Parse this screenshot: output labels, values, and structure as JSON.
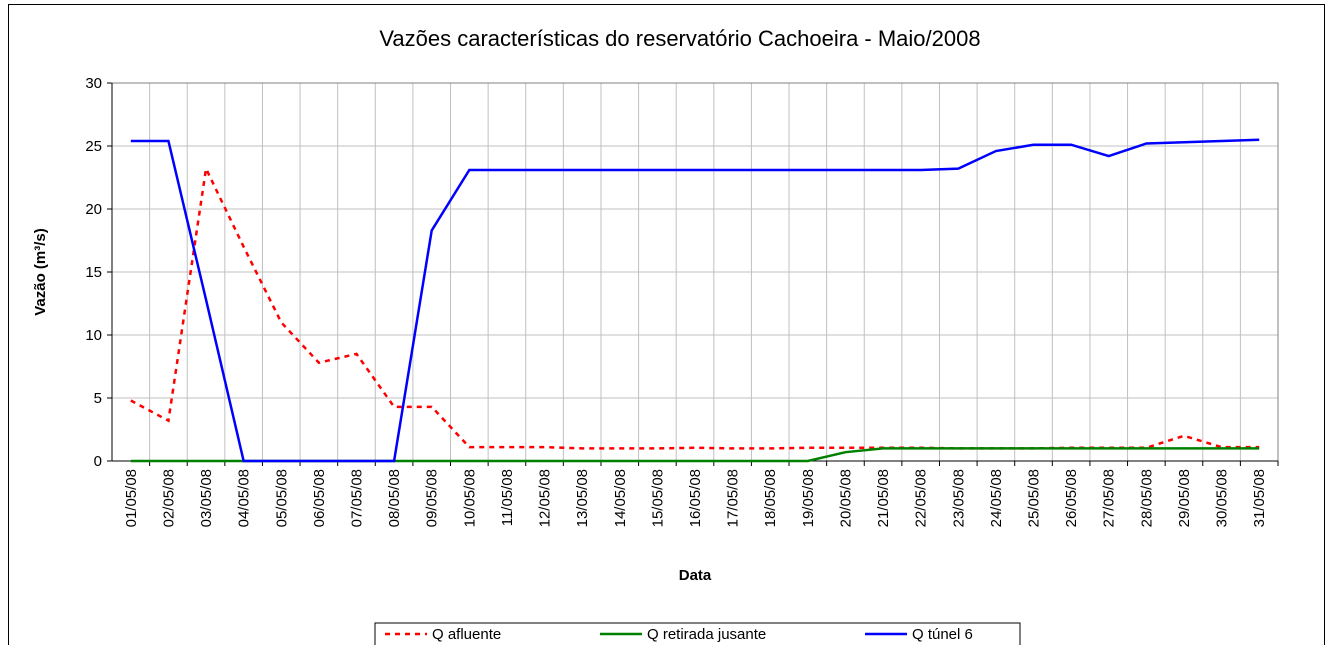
{
  "chart_data": {
    "type": "line",
    "title": "Vazões características do reservatório Cachoeira - Maio/2008",
    "x_label": "Data",
    "y_label": "Vazão (m³/s)",
    "categories": [
      "01/05/08",
      "02/05/08",
      "03/05/08",
      "04/05/08",
      "05/05/08",
      "06/05/08",
      "07/05/08",
      "08/05/08",
      "09/05/08",
      "10/05/08",
      "11/05/08",
      "12/05/08",
      "13/05/08",
      "14/05/08",
      "15/05/08",
      "16/05/08",
      "17/05/08",
      "18/05/08",
      "19/05/08",
      "20/05/08",
      "21/05/08",
      "22/05/08",
      "23/05/08",
      "24/05/08",
      "25/05/08",
      "26/05/08",
      "27/05/08",
      "28/05/08",
      "29/05/08",
      "30/05/08",
      "31/05/08"
    ],
    "series": [
      {
        "name": "Q afluente",
        "color": "#ff0000",
        "line_style": "dotted",
        "values": [
          4.8,
          3.2,
          23.2,
          17,
          11,
          7.8,
          8.5,
          4.3,
          4.3,
          1.1,
          1.1,
          1.1,
          1.0,
          1.0,
          1.0,
          1.05,
          1.0,
          1.0,
          1.05,
          1.05,
          1.05,
          1.05,
          1.0,
          1.0,
          1.0,
          1.05,
          1.05,
          1.05,
          2.0,
          1.1,
          1.1
        ]
      },
      {
        "name": "Q retirada jusante",
        "color": "#008000",
        "line_style": "solid",
        "values": [
          0,
          0,
          0,
          0,
          0,
          0,
          0,
          0,
          0,
          0,
          0,
          0,
          0,
          0,
          0,
          0,
          0,
          0,
          0,
          0.7,
          1.0,
          1.0,
          1.0,
          1.0,
          1.0,
          1.0,
          1.0,
          1.0,
          1.0,
          1.0,
          1.0
        ]
      },
      {
        "name": "Q túnel 6",
        "color": "#0000ff",
        "line_style": "solid",
        "values": [
          25.4,
          25.4,
          12.8,
          0,
          0,
          0,
          0,
          0,
          18.3,
          23.1,
          23.1,
          23.1,
          23.1,
          23.1,
          23.1,
          23.1,
          23.1,
          23.1,
          23.1,
          23.1,
          23.1,
          23.1,
          23.2,
          24.6,
          25.1,
          25.1,
          24.2,
          25.2,
          25.3,
          25.4,
          25.5
        ]
      }
    ],
    "ylim": [
      0,
      30
    ],
    "yticks": [
      0,
      5,
      10,
      15,
      20,
      25,
      30
    ],
    "grid": true,
    "legend": "bottom"
  }
}
